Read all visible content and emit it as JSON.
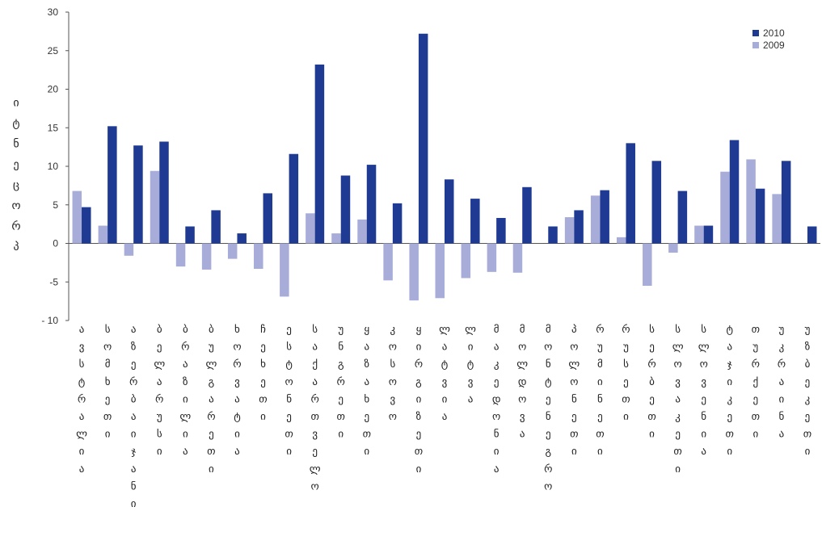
{
  "chart_data": {
    "type": "bar",
    "ylabel": "პროცენტი",
    "ylim": [
      -10,
      30
    ],
    "yticks": [
      30,
      25,
      20,
      15,
      10,
      5,
      0,
      -5,
      -10
    ],
    "ytick_labels": [
      "30",
      "25",
      "20",
      "15",
      "10",
      "5",
      "0",
      "-5",
      "- 10"
    ],
    "grid": false,
    "legend_position": "top-right",
    "categories": [
      "ავსტრალია",
      "სომხეთი",
      "აზერბაიჯანი",
      "ბელარუსი",
      "ბრაზილია",
      "ბულგარეთი",
      "ხორვატია",
      "ჩეხეთი",
      "ესტონეთი",
      "საქართველო",
      "უნგრეთი",
      "ყაზახეთი",
      "კოსოვო",
      "ყირგიზეთი",
      "ლატვია",
      "ლიტვა",
      "მაკედონია",
      "მოლდოვა",
      "მონტენეგრო",
      "პოლონეთი",
      "რუმინეთი",
      "რუსეთი",
      "სერბეთი",
      "სლოვაკეთი",
      "სლოვენია",
      "ტაჯიკეთი",
      "თურქეთი",
      "უკრაინა",
      "უზბეკეთი"
    ],
    "series": [
      {
        "name": "2010",
        "color": "#1f3a93",
        "values": [
          4.7,
          15.2,
          12.7,
          13.2,
          2.2,
          4.3,
          1.3,
          6.5,
          11.6,
          23.2,
          8.8,
          10.2,
          5.2,
          27.2,
          8.3,
          5.8,
          3.3,
          7.3,
          2.2,
          4.3,
          6.9,
          13.0,
          10.7,
          6.8,
          2.3,
          13.4,
          7.1,
          10.7,
          2.2
        ]
      },
      {
        "name": "2009",
        "color": "#a8acd8",
        "values": [
          6.8,
          2.3,
          -1.6,
          9.4,
          -3.0,
          -3.4,
          -2.0,
          -3.3,
          -6.9,
          3.9,
          1.3,
          3.1,
          -4.8,
          -7.4,
          -7.1,
          -4.5,
          -3.7,
          -3.8,
          0.0,
          3.4,
          6.2,
          0.8,
          -5.5,
          -1.2,
          2.3,
          9.3,
          10.9,
          6.4,
          0.0
        ]
      }
    ]
  }
}
